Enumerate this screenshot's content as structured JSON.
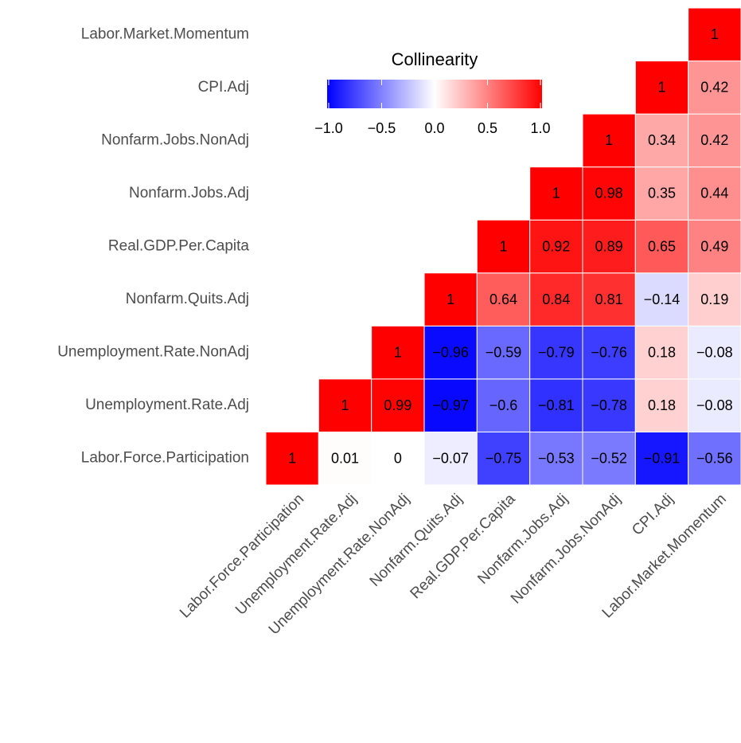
{
  "chart_data": {
    "type": "heatmap",
    "variables": [
      "Labor.Force.Participation",
      "Unemployment.Rate.Adj",
      "Unemployment.Rate.NonAdj",
      "Nonfarm.Quits.Adj",
      "Real.GDP.Per.Capita",
      "Nonfarm.Jobs.Adj",
      "Nonfarm.Jobs.NonAdj",
      "CPI.Adj",
      "Labor.Market.Momentum"
    ],
    "values": [
      [
        1,
        0.01,
        0,
        -0.07,
        -0.75,
        -0.53,
        -0.52,
        -0.91,
        -0.56
      ],
      [
        1,
        0.99,
        -0.97,
        -0.6,
        -0.81,
        -0.78,
        0.18,
        -0.08
      ],
      [
        1,
        -0.96,
        -0.59,
        -0.79,
        -0.76,
        0.18,
        -0.08
      ],
      [
        1,
        0.64,
        0.84,
        0.81,
        -0.14,
        0.19
      ],
      [
        1,
        0.92,
        0.89,
        0.65,
        0.49
      ],
      [
        1,
        0.98,
        0.35,
        0.44
      ],
      [
        1,
        0.34,
        0.42
      ],
      [
        1,
        0.42
      ],
      [
        1
      ]
    ],
    "value_labels": [
      [
        "1",
        "0.01",
        "0",
        "−0.07",
        "−0.75",
        "−0.53",
        "−0.52",
        "−0.91",
        "−0.56"
      ],
      [
        "1",
        "0.99",
        "−0.97",
        "−0.6",
        "−0.81",
        "−0.78",
        "0.18",
        "−0.08"
      ],
      [
        "1",
        "−0.96",
        "−0.59",
        "−0.79",
        "−0.76",
        "0.18",
        "−0.08"
      ],
      [
        "1",
        "0.64",
        "0.84",
        "0.81",
        "−0.14",
        "0.19"
      ],
      [
        "1",
        "0.92",
        "0.89",
        "0.65",
        "0.49"
      ],
      [
        "1",
        "0.98",
        "0.35",
        "0.44"
      ],
      [
        "1",
        "0.34",
        "0.42"
      ],
      [
        "1",
        "0.42"
      ],
      [
        "1"
      ]
    ],
    "legend_title": "Collinearity",
    "clim": [
      -1,
      1
    ],
    "cticks": [
      {
        "value": -1,
        "label": "−1.0"
      },
      {
        "value": -0.5,
        "label": "−0.5"
      },
      {
        "value": 0,
        "label": "0.0"
      },
      {
        "value": 0.5,
        "label": "0.5"
      },
      {
        "value": 1,
        "label": "1.0"
      }
    ],
    "colors": {
      "low": "#0000ff",
      "mid": "#ffffff",
      "high": "#ff0000"
    }
  }
}
